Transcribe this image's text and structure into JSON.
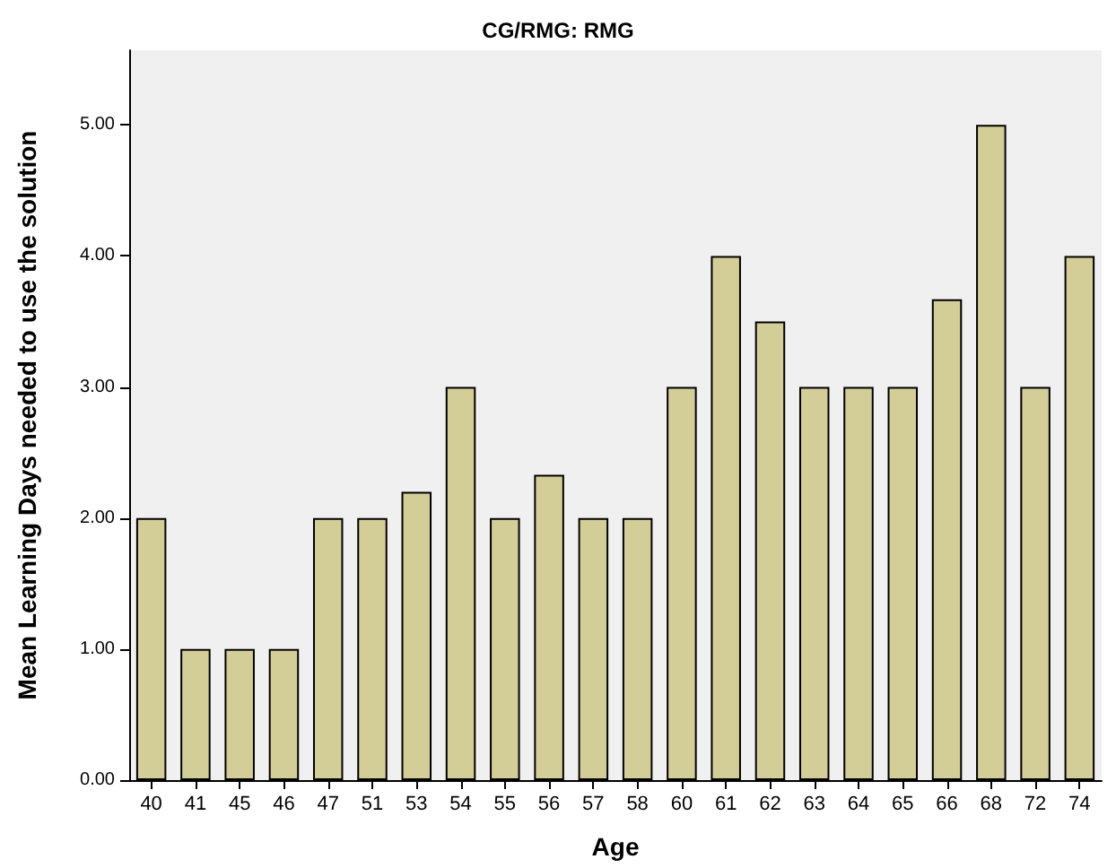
{
  "chart_data": {
    "type": "bar",
    "title": "CG/RMG: RMG",
    "xlabel": "Age",
    "ylabel": "Mean Learning Days needed to use the solution",
    "categories": [
      "40",
      "41",
      "45",
      "46",
      "47",
      "51",
      "53",
      "54",
      "55",
      "56",
      "57",
      "58",
      "60",
      "61",
      "62",
      "63",
      "64",
      "65",
      "66",
      "68",
      "72",
      "74"
    ],
    "values": [
      2,
      1,
      1,
      1,
      2,
      2,
      2.2,
      3,
      2,
      2.33,
      2,
      2,
      3,
      4,
      3.5,
      3,
      3,
      3,
      3.67,
      5,
      3,
      4
    ],
    "color": "#d3ce97",
    "ylim": [
      0,
      5.57
    ],
    "yticks": [
      {
        "value": 0,
        "label": "0.00"
      },
      {
        "value": 1,
        "label": "1.00"
      },
      {
        "value": 2,
        "label": "2.00"
      },
      {
        "value": 3,
        "label": "3.00"
      },
      {
        "value": 4,
        "label": "4.00"
      },
      {
        "value": 5,
        "label": "5.00"
      }
    ],
    "grid": false
  }
}
